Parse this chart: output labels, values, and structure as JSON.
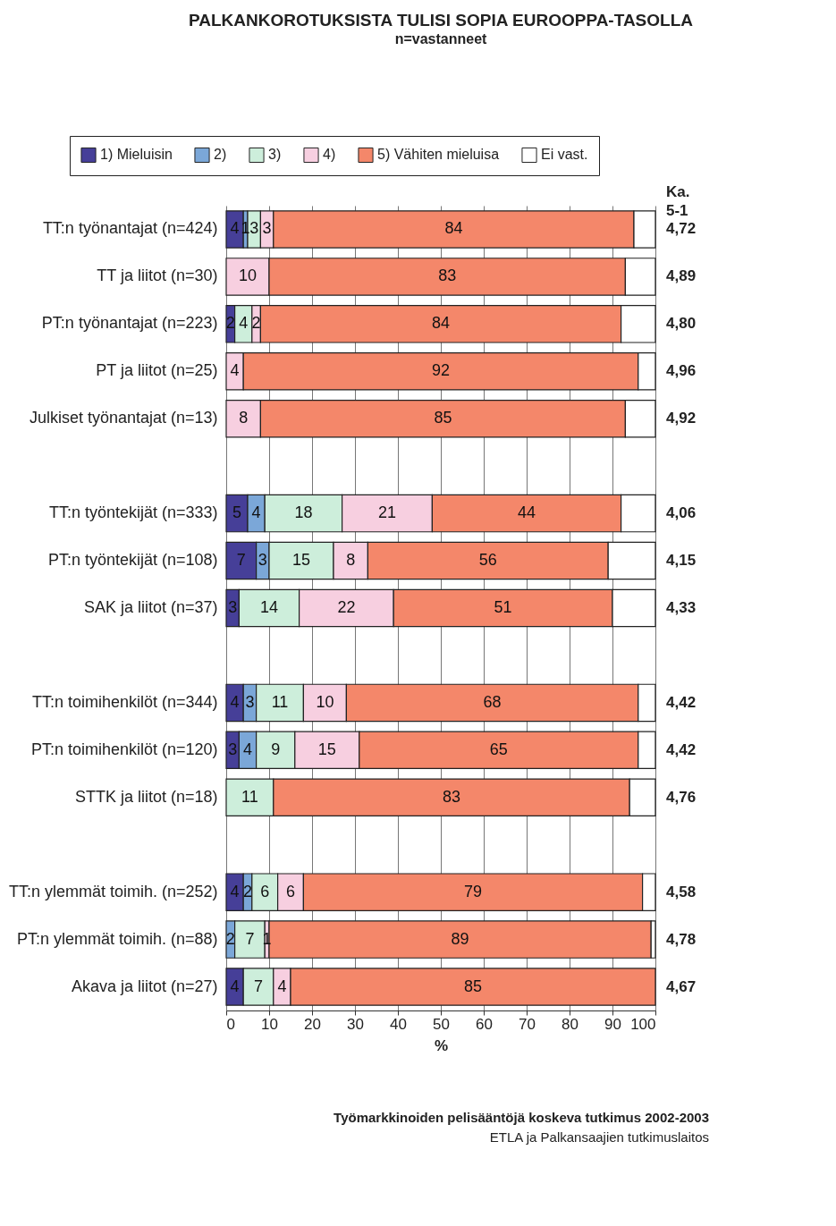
{
  "chart_data": {
    "type": "bar",
    "orientation": "horizontal",
    "stacked": true,
    "title": "PALKANKOROTUKSISTA TULISI SOPIA EUROOPPA-TASOLLA",
    "subtitle": "n=vastanneet",
    "xlabel": "%",
    "categories": [
      "TT:n työnantajat (n=424)",
      "TT ja liitot (n=30)",
      "PT:n työnantajat (n=223)",
      "PT ja liitot (n=25)",
      "Julkiset työnantajat (n=13)",
      null,
      "TT:n työntekijät (n=333)",
      "PT:n työntekijät (n=108)",
      "SAK ja liitot (n=37)",
      null,
      "TT:n toimihenkilöt (n=344)",
      "PT:n toimihenkilöt (n=120)",
      "STTK ja liitot (n=18)",
      null,
      "TT:n ylemmät toimih. (n=252)",
      "PT:n ylemmät toimih. (n=88)",
      "Akava ja liitot (n=27)"
    ],
    "series": [
      {
        "name": "1) Mieluisin",
        "color": "#463f98",
        "values": [
          4,
          null,
          2,
          null,
          null,
          null,
          5,
          7,
          3,
          null,
          4,
          3,
          null,
          null,
          4,
          null,
          4
        ],
        "value_labels": [
          "4",
          null,
          "2",
          null,
          null,
          null,
          "5",
          "7",
          "3",
          null,
          "4",
          "3",
          null,
          null,
          "4",
          null,
          "4"
        ]
      },
      {
        "name": "2)",
        "color": "#7ba7d8",
        "values": [
          1,
          null,
          null,
          null,
          null,
          null,
          4,
          3,
          null,
          null,
          3,
          4,
          null,
          null,
          2,
          2,
          null
        ],
        "value_labels": [
          "1",
          null,
          null,
          null,
          null,
          null,
          "4",
          "3",
          null,
          null,
          "3",
          "4",
          null,
          null,
          "2",
          "2",
          null
        ]
      },
      {
        "name": "3)",
        "color": "#cdeedb",
        "values": [
          3,
          null,
          4,
          null,
          null,
          null,
          18,
          15,
          14,
          null,
          11,
          9,
          11,
          null,
          6,
          7,
          7
        ],
        "value_labels": [
          "3",
          null,
          "4",
          null,
          null,
          null,
          "18",
          "15",
          "14",
          null,
          "11",
          "9",
          "11",
          null,
          "6",
          "7",
          "7"
        ]
      },
      {
        "name": "4)",
        "color": "#f7cfe0",
        "values": [
          3,
          10,
          2,
          4,
          8,
          null,
          21,
          8,
          22,
          null,
          10,
          15,
          null,
          null,
          6,
          1,
          4
        ],
        "value_labels": [
          "3",
          "10",
          "2",
          "4",
          "8",
          null,
          "21",
          "8",
          "22",
          null,
          "10",
          "15",
          null,
          null,
          "6",
          "1",
          "4"
        ]
      },
      {
        "name": "5) Vähiten mieluisa",
        "color": "#f4876a",
        "values": [
          84,
          83,
          84,
          92,
          85,
          null,
          44,
          56,
          51,
          null,
          68,
          65,
          83,
          null,
          79,
          89,
          85
        ],
        "value_labels": [
          "84",
          "83",
          "84",
          "92",
          "85",
          null,
          "44",
          "56",
          "51",
          null,
          "68",
          "65",
          "83",
          null,
          "79",
          "89",
          "85"
        ]
      },
      {
        "name": "Ei vast.",
        "color": "#ffffff",
        "values": [
          5,
          7,
          8,
          4,
          7,
          null,
          8,
          11,
          10,
          null,
          4,
          4,
          6,
          null,
          3,
          1,
          null
        ]
      }
    ],
    "xlim": [
      0,
      100
    ],
    "xticks": [
      0,
      10,
      20,
      30,
      40,
      50,
      60,
      70,
      80,
      90,
      100
    ],
    "grid": "x",
    "legend": "top",
    "annotations": [
      "Ka. 5-1",
      "4,72",
      "4,89",
      "4,80",
      "4,96",
      "4,92",
      "4,06",
      "4,15",
      "4,33",
      "4,42",
      "4,42",
      "4,76",
      "4,58",
      "4,78",
      "4,67",
      "Työmarkkinoiden pelisääntöjä koskeva tutkimus 2002-2003",
      "ETLA ja Palkansaajien tutkimuslaitos"
    ]
  }
}
